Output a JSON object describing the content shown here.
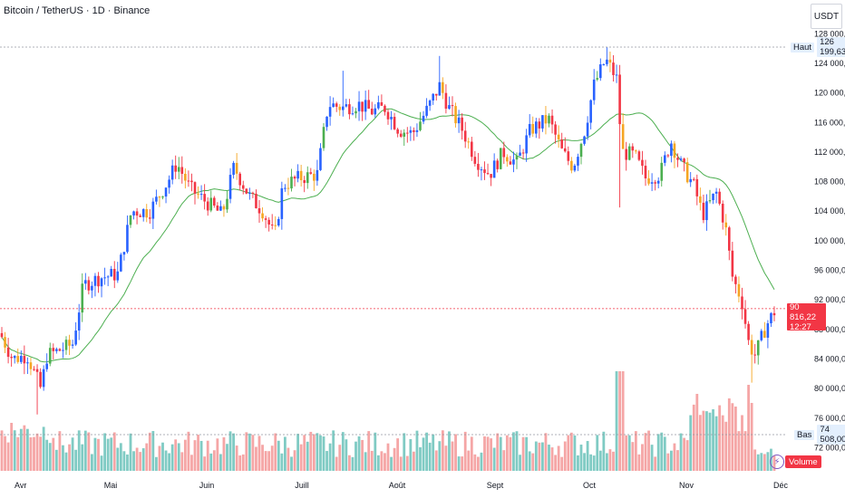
{
  "header": {
    "title": "Bitcoin / TetherUS · 1D · Binance",
    "currency": "USDT"
  },
  "price_axis": {
    "ticks": [
      "128 000,00",
      "124 000,00",
      "120 000,00",
      "116 000,00",
      "112 000,00",
      "108 000,00",
      "104 000,00",
      "100 000,00",
      "96 000,00",
      "92 000,00",
      "88 000,00",
      "84 000,00",
      "80 000,00",
      "76 000,00",
      "72 000,00"
    ]
  },
  "time_axis": {
    "labels": [
      "Avr",
      "Mai",
      "Juin",
      "Juill",
      "Août",
      "Sept",
      "Oct",
      "Nov",
      "Déc"
    ]
  },
  "high_marker": {
    "label": "Haut",
    "value": "126 199,63"
  },
  "low_marker": {
    "label": "Bas",
    "value": "74 508,00"
  },
  "last_price": {
    "value": "90 816,22",
    "countdown": "12:27"
  },
  "volume_label": "Volume",
  "colors": {
    "up": "#2962ff",
    "down": "#f23645",
    "orange": "#f5a623",
    "green": "#4caf50",
    "ma": "#4caf50",
    "vol_up": "#80cbc4",
    "vol_down": "#f5a6a6"
  },
  "chart_data": {
    "type": "candlestick",
    "title": "Bitcoin / TetherUS · 1D · Binance",
    "ylim": [
      70000,
      129500
    ],
    "high": 126199.63,
    "low": 74508.0,
    "last": 90816.22,
    "moving_average": {
      "name": "",
      "values": []
    }
  }
}
